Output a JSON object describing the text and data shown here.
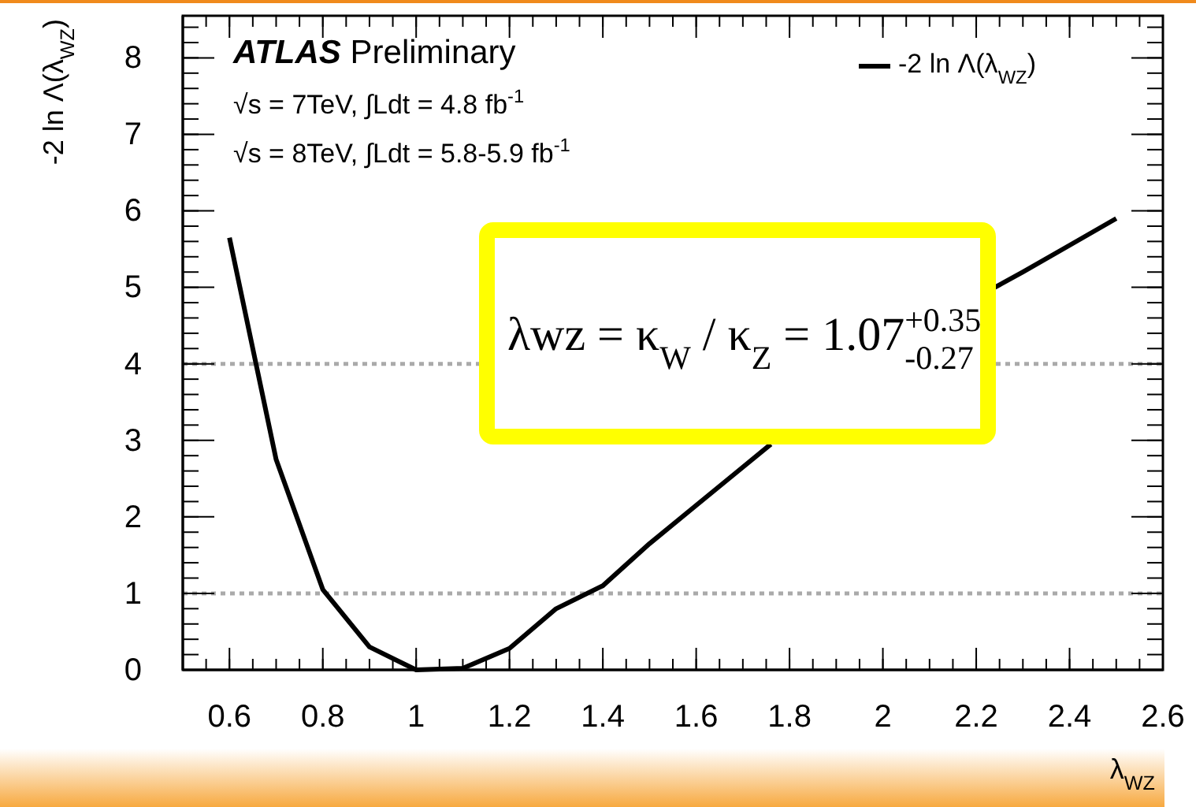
{
  "chart_data": {
    "type": "line",
    "xlabel": "λ$_{WZ}$",
    "ylabel": "-2 ln Λ(λ$_{WZ}$)",
    "x": [
      0.6,
      0.7,
      0.8,
      0.9,
      1.0,
      1.1,
      1.2,
      1.3,
      1.4,
      1.5,
      1.6,
      1.7,
      1.76,
      2.0,
      2.24,
      2.3,
      2.4,
      2.5
    ],
    "series": [
      {
        "name": "-2 ln Λ(λ$_{WZ}$)",
        "color": "#000000",
        "values": [
          5.65,
          2.75,
          1.05,
          0.3,
          0.0,
          0.02,
          0.28,
          0.8,
          1.1,
          1.65,
          2.15,
          2.65,
          2.95,
          null,
          5.0,
          5.2,
          5.55,
          5.9
        ]
      }
    ],
    "xlim": [
      0.5,
      2.6
    ],
    "xticks": [
      0.6,
      0.8,
      1,
      1.2,
      1.4,
      1.6,
      1.8,
      2,
      2.2,
      2.4,
      2.6
    ],
    "ylim": [
      0,
      8.55
    ],
    "yticks": [
      0,
      1,
      2,
      3,
      4,
      5,
      6,
      7,
      8
    ],
    "ref_lines": [
      {
        "axis": "y",
        "value": 1,
        "color": "#aaaaaa",
        "line_style": "dotted"
      },
      {
        "axis": "y",
        "value": 4,
        "color": "#aaaaaa",
        "line_style": "dotted"
      }
    ],
    "annotations": [
      "ATLAS Preliminary",
      "√s = 7TeV, ∫Ldt = 4.8 fb$^{-1}$",
      "√s = 8TeV, ∫Ldt = 5.8-5.9 fb$^{-1}$",
      "λwz = κ$_{W}$ / κ$_{Z}$ = 1.07$^{+0.35}$$_{-0.27}$"
    ],
    "legend": "top right",
    "grid": false,
    "marker": "none",
    "line_style": "solid"
  }
}
